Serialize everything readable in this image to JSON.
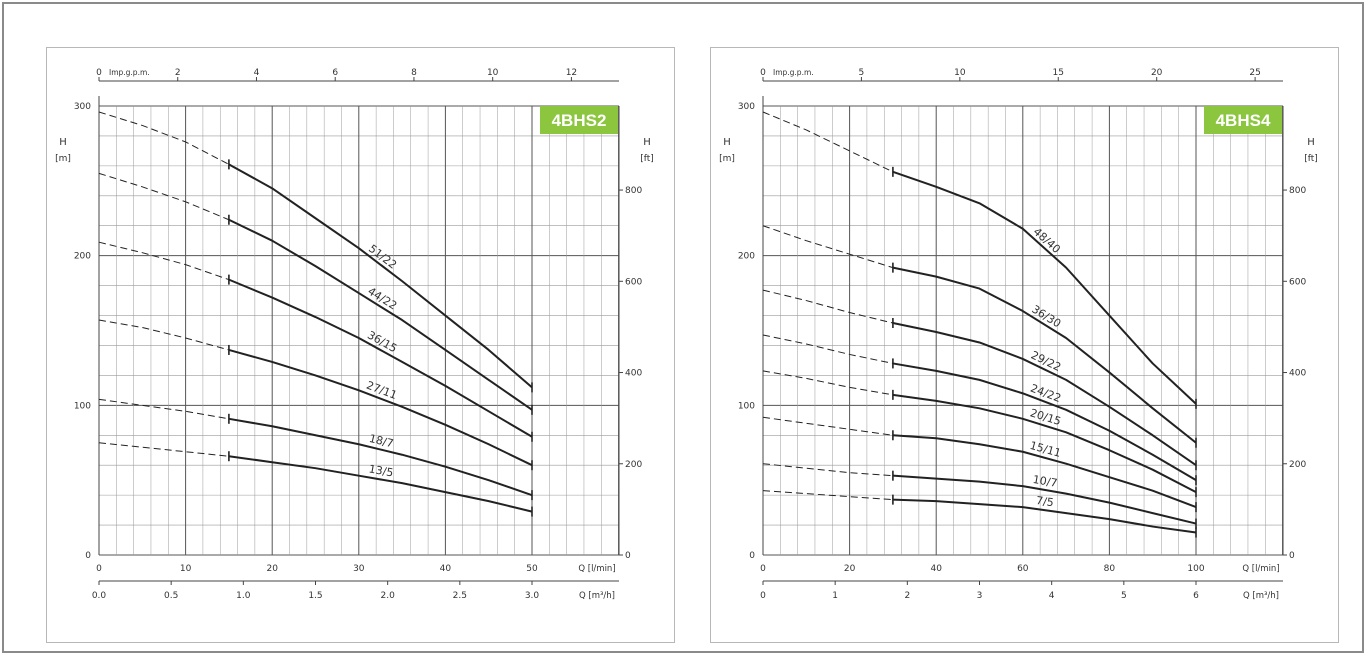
{
  "colors": {
    "curve": "#222222",
    "grid_major": "#555555",
    "grid_minor": "#9a9a9a",
    "badge": "#8cc63f",
    "badge_text": "#ffffff"
  },
  "chart_data": [
    {
      "type": "line",
      "title": "4BHS2",
      "ylabel_left": "H\n[m]",
      "ylabel_right": "H\n[ft]",
      "xlabel": "Q [l/min]",
      "x2label": "Q [m³/h]",
      "top_axis_label": "Imp.g.p.m.",
      "xlim": [
        0,
        60
      ],
      "ylim": [
        0,
        300
      ],
      "x_ticks": [
        "0",
        "10",
        "20",
        "30",
        "40",
        "50"
      ],
      "x_tick_values": [
        0,
        10,
        20,
        30,
        40,
        50
      ],
      "x2_ticks": [
        "0.0",
        "0.5",
        "1.0",
        "1.5",
        "2.0",
        "2.5",
        "3.0"
      ],
      "x2_tick_values": [
        0,
        0.5,
        1.0,
        1.5,
        2.0,
        2.5,
        3.0
      ],
      "x2_to_x_factor": 16.6667,
      "top_ticks": [
        "0",
        "2",
        "4",
        "6",
        "8",
        "10",
        "12"
      ],
      "top_tick_values": [
        0,
        2,
        4,
        6,
        8,
        10,
        12
      ],
      "top_to_x_factor": 4.546,
      "y_ticks": [
        "0",
        "100",
        "200",
        "300"
      ],
      "y_tick_values": [
        0,
        100,
        200,
        300
      ],
      "y_right_ticks": [
        "0",
        "200",
        "400",
        "600",
        "800"
      ],
      "y_right_tick_values": [
        0,
        200,
        400,
        600,
        800
      ],
      "ft_per_m": 3.2808,
      "grid": true,
      "operating_start_x": 15,
      "operating_end_x": 50,
      "series": [
        {
          "name": "51/22",
          "x": [
            0,
            5,
            10,
            15,
            20,
            25,
            30,
            35,
            40,
            45,
            50
          ],
          "y": [
            296,
            287,
            276,
            261,
            245,
            225,
            205,
            183,
            160,
            137,
            112
          ]
        },
        {
          "name": "44/22",
          "x": [
            0,
            5,
            10,
            15,
            20,
            25,
            30,
            35,
            40,
            45,
            50
          ],
          "y": [
            255,
            246,
            236,
            224,
            210,
            193,
            175,
            157,
            137,
            117,
            97
          ]
        },
        {
          "name": "36/15",
          "x": [
            0,
            5,
            10,
            15,
            20,
            25,
            30,
            35,
            40,
            45,
            50
          ],
          "y": [
            209,
            202,
            194,
            184,
            172,
            159,
            145,
            129,
            113,
            96,
            79
          ]
        },
        {
          "name": "27/11",
          "x": [
            0,
            5,
            10,
            15,
            20,
            25,
            30,
            35,
            40,
            45,
            50
          ],
          "y": [
            157,
            152,
            145,
            137,
            129,
            120,
            110,
            99,
            87,
            74,
            60
          ]
        },
        {
          "name": "18/7",
          "x": [
            0,
            5,
            10,
            15,
            20,
            25,
            30,
            35,
            40,
            45,
            50
          ],
          "y": [
            104,
            100,
            96,
            91,
            86,
            80,
            74,
            67,
            59,
            50,
            40
          ]
        },
        {
          "name": "13/5",
          "x": [
            0,
            5,
            10,
            15,
            20,
            25,
            30,
            35,
            40,
            45,
            50
          ],
          "y": [
            75,
            72,
            69,
            66,
            62,
            58,
            53,
            48,
            42,
            36,
            29
          ]
        }
      ]
    },
    {
      "type": "line",
      "title": "4BHS4",
      "ylabel_left": "H\n[m]",
      "ylabel_right": "H\n[ft]",
      "xlabel": "Q [l/min]",
      "x2label": "Q [m³/h]",
      "top_axis_label": "Imp.g.p.m.",
      "xlim": [
        0,
        120
      ],
      "ylim": [
        0,
        300
      ],
      "x_ticks": [
        "0",
        "20",
        "40",
        "60",
        "80",
        "100"
      ],
      "x_tick_values": [
        0,
        20,
        40,
        60,
        80,
        100
      ],
      "x2_ticks": [
        "0",
        "1",
        "2",
        "3",
        "4",
        "5",
        "6"
      ],
      "x2_tick_values": [
        0,
        1,
        2,
        3,
        4,
        5,
        6
      ],
      "x2_to_x_factor": 16.6667,
      "top_ticks": [
        "0",
        "5",
        "10",
        "15",
        "20",
        "25"
      ],
      "top_tick_values": [
        0,
        5,
        10,
        15,
        20,
        25
      ],
      "top_to_x_factor": 4.546,
      "y_ticks": [
        "0",
        "100",
        "200",
        "300"
      ],
      "y_tick_values": [
        0,
        100,
        200,
        300
      ],
      "y_right_ticks": [
        "0",
        "200",
        "400",
        "600",
        "800"
      ],
      "y_right_tick_values": [
        0,
        200,
        400,
        600,
        800
      ],
      "ft_per_m": 3.2808,
      "grid": true,
      "operating_start_x": 30,
      "operating_end_x": 100,
      "series": [
        {
          "name": "48/40",
          "x": [
            0,
            10,
            20,
            30,
            40,
            50,
            60,
            70,
            80,
            90,
            100
          ],
          "y": [
            296,
            284,
            270,
            256,
            246,
            235,
            218,
            192,
            160,
            128,
            101
          ]
        },
        {
          "name": "36/30",
          "x": [
            0,
            10,
            20,
            30,
            40,
            50,
            60,
            70,
            80,
            90,
            100
          ],
          "y": [
            220,
            210,
            201,
            192,
            186,
            178,
            163,
            145,
            122,
            98,
            75
          ]
        },
        {
          "name": "29/22",
          "x": [
            0,
            10,
            20,
            30,
            40,
            50,
            60,
            70,
            80,
            90,
            100
          ],
          "y": [
            177,
            170,
            162,
            155,
            149,
            142,
            131,
            117,
            99,
            80,
            60
          ]
        },
        {
          "name": "24/22",
          "x": [
            0,
            10,
            20,
            30,
            40,
            50,
            60,
            70,
            80,
            90,
            100
          ],
          "y": [
            147,
            141,
            134,
            128,
            123,
            117,
            108,
            97,
            83,
            67,
            50
          ]
        },
        {
          "name": "20/15",
          "x": [
            0,
            10,
            20,
            30,
            40,
            50,
            60,
            70,
            80,
            90,
            100
          ],
          "y": [
            123,
            118,
            112,
            107,
            103,
            98,
            91,
            82,
            70,
            57,
            42
          ]
        },
        {
          "name": "15/11",
          "x": [
            0,
            10,
            20,
            30,
            40,
            50,
            60,
            70,
            80,
            90,
            100
          ],
          "y": [
            92,
            88,
            84,
            80,
            78,
            74,
            69,
            61,
            52,
            43,
            32
          ]
        },
        {
          "name": "10/7",
          "x": [
            0,
            10,
            20,
            30,
            40,
            50,
            60,
            70,
            80,
            90,
            100
          ],
          "y": [
            61,
            58,
            55,
            53,
            51,
            49,
            46,
            41,
            35,
            28,
            21
          ]
        },
        {
          "name": "7/5",
          "x": [
            0,
            10,
            20,
            30,
            40,
            50,
            60,
            70,
            80,
            90,
            100
          ],
          "y": [
            43,
            41,
            39,
            37,
            36,
            34,
            32,
            28,
            24,
            19,
            15
          ]
        }
      ]
    }
  ]
}
